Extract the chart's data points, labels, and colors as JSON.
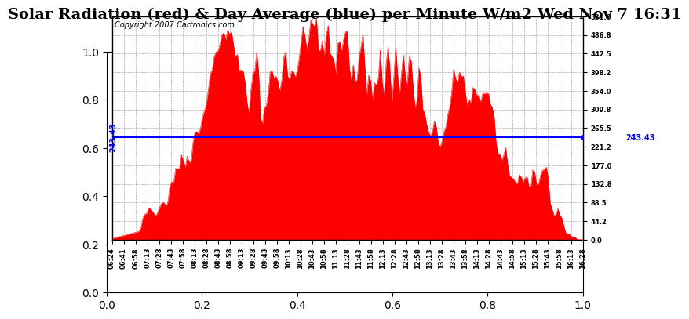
{
  "title": "Solar Radiation (red) & Day Average (blue) per Minute W/m2 Wed Nov 7 16:31",
  "copyright": "Copyright 2007 Cartronics.com",
  "avg_value": 243.43,
  "y_max": 531.0,
  "y_min": 0.0,
  "y_ticks": [
    0.0,
    44.2,
    88.5,
    132.8,
    177.0,
    221.2,
    265.5,
    309.8,
    354.0,
    398.2,
    442.5,
    486.8,
    531.0
  ],
  "bar_color": "#FF0000",
  "avg_line_color": "#0000FF",
  "background_color": "#FFFFFF",
  "plot_bg_color": "#FFFFFF",
  "grid_color": "#AAAAAA",
  "title_fontsize": 14,
  "copyright_fontsize": 7,
  "avg_label_fontsize": 7,
  "tick_label_fontsize": 6,
  "x_tick_labels": [
    "06:24",
    "06:41",
    "06:58",
    "07:13",
    "07:28",
    "07:43",
    "07:58",
    "08:13",
    "08:28",
    "08:43",
    "08:58",
    "09:13",
    "09:28",
    "09:43",
    "09:58",
    "10:13",
    "10:28",
    "10:43",
    "10:58",
    "11:13",
    "11:28",
    "11:43",
    "11:58",
    "12:13",
    "12:28",
    "12:43",
    "12:58",
    "13:13",
    "13:28",
    "13:43",
    "13:58",
    "14:13",
    "14:28",
    "14:43",
    "14:58",
    "15:13",
    "15:28",
    "15:43",
    "15:58",
    "16:13",
    "16:28"
  ]
}
